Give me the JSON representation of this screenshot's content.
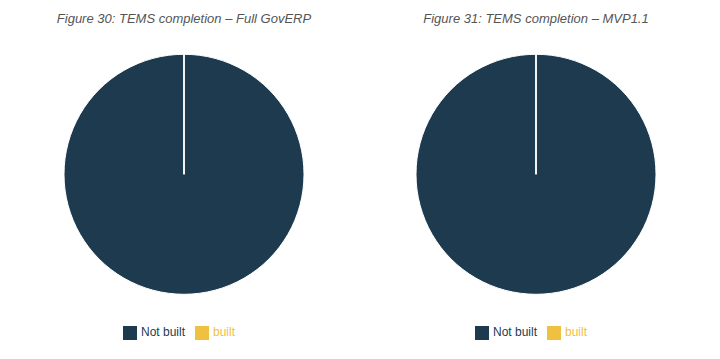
{
  "chart_data": [
    {
      "type": "pie",
      "title": "Figure 30: TEMS completion – Full GovERP",
      "categories": [
        "Not built",
        "built"
      ],
      "values": [
        100,
        0.0001
      ],
      "colors": [
        "#1e3a4f",
        "#f0c040"
      ],
      "legend": "bottom"
    },
    {
      "type": "pie",
      "title": "Figure 31: TEMS completion – MVP1.1",
      "categories": [
        "Not built",
        "built"
      ],
      "values": [
        100,
        0.0001
      ],
      "colors": [
        "#1e3a4f",
        "#f0c040"
      ],
      "legend": "bottom"
    }
  ]
}
